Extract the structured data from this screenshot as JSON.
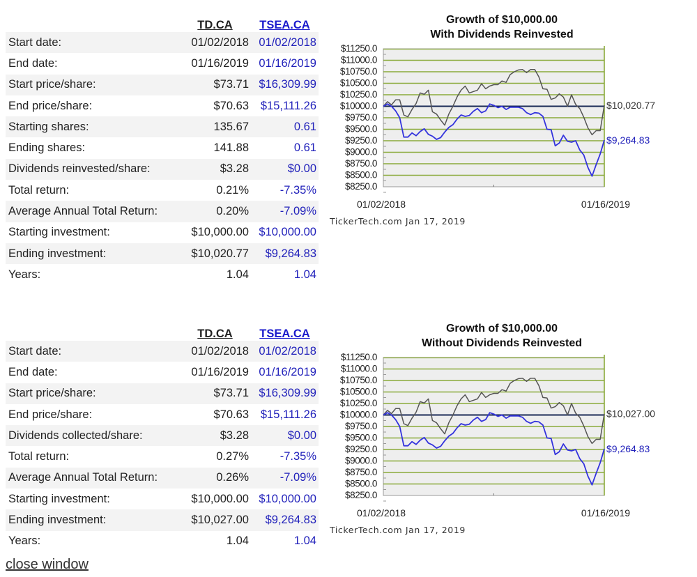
{
  "panels": [
    {
      "headers": {
        "col1": "TD.CA",
        "col2": "TSEA.CA"
      },
      "rows": [
        {
          "label": "Start date:",
          "v1": "01/02/2018",
          "v2": "01/02/2018"
        },
        {
          "label": "End date:",
          "v1": "01/16/2019",
          "v2": "01/16/2019"
        },
        {
          "label": "Start price/share:",
          "v1": "$73.71",
          "v2": "$16,309.99"
        },
        {
          "label": "End price/share:",
          "v1": "$70.63",
          "v2": "$15,111.26"
        },
        {
          "label": "Starting shares:",
          "v1": "135.67",
          "v2": "0.61"
        },
        {
          "label": "Ending shares:",
          "v1": "141.88",
          "v2": "0.61"
        },
        {
          "label": "Dividends reinvested/share:",
          "v1": "$3.28",
          "v2": "$0.00"
        },
        {
          "label": "Total return:",
          "v1": "0.21%",
          "v2": "-7.35%"
        },
        {
          "label": "Average Annual Total Return:",
          "v1": "0.20%",
          "v2": "-7.09%"
        },
        {
          "label": "Starting investment:",
          "v1": "$10,000.00",
          "v2": "$10,000.00"
        },
        {
          "label": "Ending investment:",
          "v1": "$10,020.77",
          "v2": "$9,264.83"
        },
        {
          "label": "Years:",
          "v1": "1.04",
          "v2": "1.04"
        }
      ]
    },
    {
      "headers": {
        "col1": "TD.CA",
        "col2": "TSEA.CA"
      },
      "rows": [
        {
          "label": "Start date:",
          "v1": "01/02/2018",
          "v2": "01/02/2018"
        },
        {
          "label": "End date:",
          "v1": "01/16/2019",
          "v2": "01/16/2019"
        },
        {
          "label": "Start price/share:",
          "v1": "$73.71",
          "v2": "$16,309.99"
        },
        {
          "label": "End price/share:",
          "v1": "$70.63",
          "v2": "$15,111.26"
        },
        {
          "label": "Dividends collected/share:",
          "v1": "$3.28",
          "v2": "$0.00"
        },
        {
          "label": "Total return:",
          "v1": "0.27%",
          "v2": "-7.35%"
        },
        {
          "label": "Average Annual Total Return:",
          "v1": "0.26%",
          "v2": "-7.09%"
        },
        {
          "label": "Starting investment:",
          "v1": "$10,000.00",
          "v2": "$10,000.00"
        },
        {
          "label": "Ending investment:",
          "v1": "$10,027.00",
          "v2": "$9,264.83"
        },
        {
          "label": "Years:",
          "v1": "1.04",
          "v2": "1.04"
        }
      ]
    }
  ],
  "close_link": "close window",
  "colors": {
    "td_line": "#555555",
    "tsea_line": "#3333dd",
    "baseline": "#1a2a55",
    "grid": "#8aaa3a",
    "plot_bg": "#eeeeee",
    "tsea_text": "#2222bb"
  },
  "chart_data": [
    {
      "type": "line",
      "title": "Growth of $10,000.00",
      "subtitle": "With Dividends Reinvested",
      "xlabel": "",
      "ylabel": "",
      "x_tick_labels": [
        "01/02/2018",
        "01/16/2019"
      ],
      "ylim": [
        8250,
        11250
      ],
      "y_ticks": [
        11250,
        11000,
        10750,
        10500,
        10250,
        10000,
        9750,
        9500,
        9250,
        9000,
        8750,
        8500,
        8250
      ],
      "y_tick_labels": [
        "$11250.0",
        "$11000.0",
        "$10750.0",
        "$10500.0",
        "$10250.0",
        "$10000.0",
        "$9750.0",
        "$9500.0",
        "$9250.0",
        "$9000.0",
        "$8750.0",
        "$8500.0",
        "$8250.0"
      ],
      "baseline": 10000,
      "grid": true,
      "credit": "TickerTech.com  Jan 17, 2019",
      "series": [
        {
          "name": "TD.CA",
          "end_label": "$10,020.77",
          "values": [
            10000,
            10100,
            10030,
            10140,
            10140,
            9810,
            9770,
            9930,
            10060,
            10290,
            10260,
            10350,
            9880,
            9830,
            9700,
            9590,
            9830,
            10000,
            10200,
            10350,
            10440,
            10290,
            10320,
            10350,
            10490,
            10380,
            10440,
            10470,
            10470,
            10550,
            10520,
            10690,
            10750,
            10790,
            10800,
            10730,
            10800,
            10800,
            10640,
            10380,
            10370,
            10150,
            10180,
            10270,
            10200,
            10000,
            10250,
            10040,
            9950,
            9760,
            9530,
            9380,
            9470,
            9470,
            10020.77
          ]
        },
        {
          "name": "TSEA.CA",
          "end_label": "$9,264.83",
          "values": [
            10000,
            10050,
            10000,
            9900,
            9750,
            9330,
            9330,
            9420,
            9360,
            9450,
            9510,
            9390,
            9350,
            9280,
            9320,
            9440,
            9540,
            9600,
            9720,
            9810,
            9780,
            9800,
            9890,
            9950,
            9860,
            9900,
            10050,
            10020,
            9970,
            10000,
            9930,
            9980,
            9980,
            9980,
            9950,
            9860,
            9820,
            9860,
            9850,
            9780,
            9500,
            9490,
            9140,
            9200,
            9370,
            9240,
            9220,
            9250,
            9050,
            8940,
            8670,
            8480,
            8730,
            8960,
            9264.83
          ]
        }
      ]
    },
    {
      "type": "line",
      "title": "Growth of $10,000.00",
      "subtitle": "Without Dividends Reinvested",
      "xlabel": "",
      "ylabel": "",
      "x_tick_labels": [
        "01/02/2018",
        "01/16/2019"
      ],
      "ylim": [
        8250,
        11250
      ],
      "y_ticks": [
        11250,
        11000,
        10750,
        10500,
        10250,
        10000,
        9750,
        9500,
        9250,
        9000,
        8750,
        8500,
        8250
      ],
      "y_tick_labels": [
        "$11250.0",
        "$11000.0",
        "$10750.0",
        "$10500.0",
        "$10250.0",
        "$10000.0",
        "$9750.0",
        "$9500.0",
        "$9250.0",
        "$9000.0",
        "$8750.0",
        "$8500.0",
        "$8250.0"
      ],
      "baseline": 10000,
      "grid": true,
      "credit": "TickerTech.com  Jan 17, 2019",
      "series": [
        {
          "name": "TD.CA",
          "end_label": "$10,027.00",
          "values": [
            10000,
            10100,
            10030,
            10140,
            10140,
            9810,
            9770,
            9930,
            10060,
            10290,
            10260,
            10350,
            9880,
            9830,
            9700,
            9590,
            9830,
            10000,
            10200,
            10350,
            10440,
            10290,
            10320,
            10350,
            10490,
            10380,
            10440,
            10470,
            10470,
            10550,
            10520,
            10690,
            10750,
            10790,
            10800,
            10730,
            10800,
            10800,
            10640,
            10380,
            10370,
            10150,
            10180,
            10270,
            10200,
            10000,
            10250,
            10040,
            9950,
            9760,
            9530,
            9380,
            9470,
            9470,
            10027.0
          ]
        },
        {
          "name": "TSEA.CA",
          "end_label": "$9,264.83",
          "values": [
            10000,
            10050,
            10000,
            9900,
            9750,
            9330,
            9330,
            9420,
            9360,
            9450,
            9510,
            9390,
            9350,
            9280,
            9320,
            9440,
            9540,
            9600,
            9720,
            9810,
            9780,
            9800,
            9890,
            9950,
            9860,
            9900,
            10050,
            10020,
            9970,
            10000,
            9930,
            9980,
            9980,
            9980,
            9950,
            9860,
            9820,
            9860,
            9850,
            9780,
            9500,
            9490,
            9140,
            9200,
            9370,
            9240,
            9220,
            9250,
            9050,
            8940,
            8670,
            8480,
            8730,
            8960,
            9264.83
          ]
        }
      ]
    }
  ]
}
